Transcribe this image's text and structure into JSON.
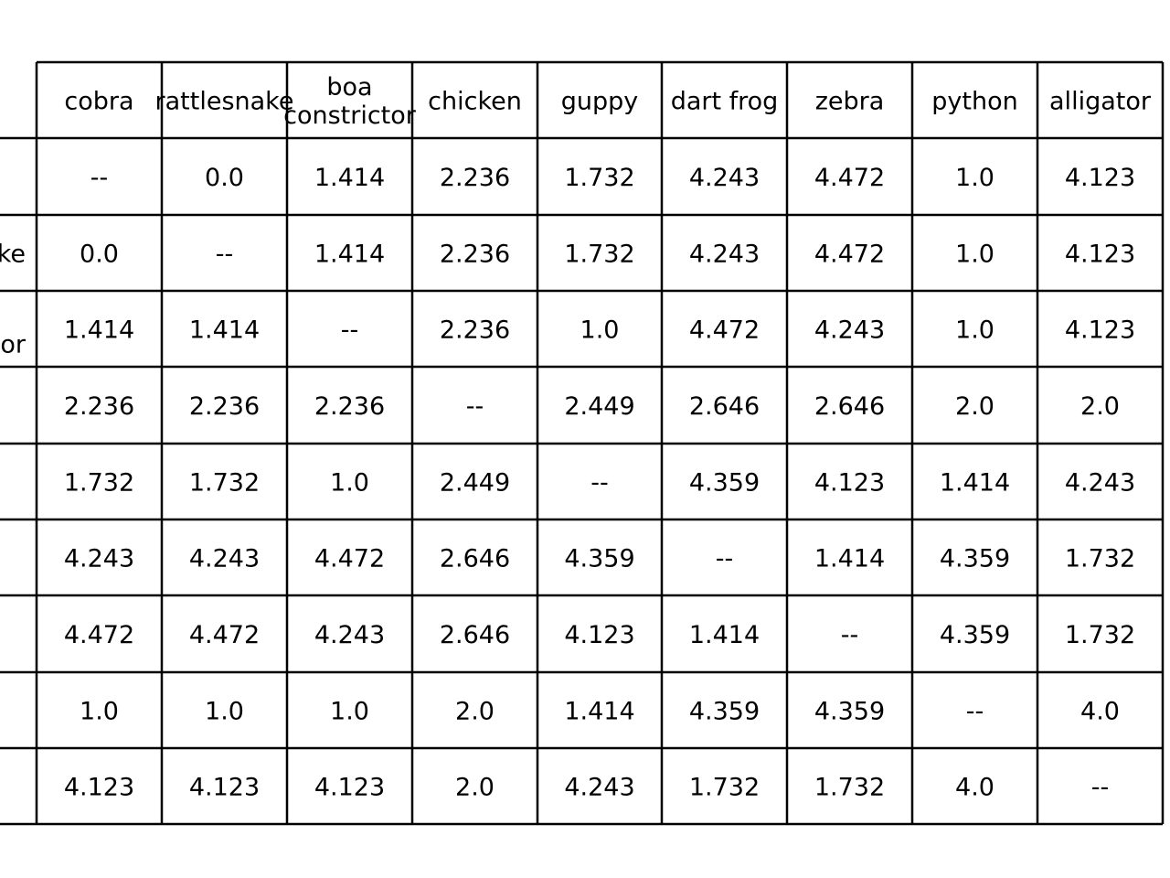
{
  "chart_data": {
    "type": "table",
    "columns": [
      "cobra",
      "rattlesnake",
      "boa constrictor",
      "chicken",
      "guppy",
      "dart frog",
      "zebra",
      "python",
      "alligator"
    ],
    "row_label_fragments": [
      "",
      "ke",
      "or",
      "",
      "",
      "",
      "",
      "",
      ""
    ],
    "cells": [
      [
        "--",
        "0.0",
        "1.414",
        "2.236",
        "1.732",
        "4.243",
        "4.472",
        "1.0",
        "4.123"
      ],
      [
        "0.0",
        "--",
        "1.414",
        "2.236",
        "1.732",
        "4.243",
        "4.472",
        "1.0",
        "4.123"
      ],
      [
        "1.414",
        "1.414",
        "--",
        "2.236",
        "1.0",
        "4.472",
        "4.243",
        "1.0",
        "4.123"
      ],
      [
        "2.236",
        "2.236",
        "2.236",
        "--",
        "2.449",
        "2.646",
        "2.646",
        "2.0",
        "2.0"
      ],
      [
        "1.732",
        "1.732",
        "1.0",
        "2.449",
        "--",
        "4.359",
        "4.123",
        "1.414",
        "4.243"
      ],
      [
        "4.243",
        "4.243",
        "4.472",
        "2.646",
        "4.359",
        "--",
        "1.414",
        "4.359",
        "1.732"
      ],
      [
        "4.472",
        "4.472",
        "4.243",
        "2.646",
        "4.123",
        "1.414",
        "--",
        "4.359",
        "1.732"
      ],
      [
        "1.0",
        "1.0",
        "1.0",
        "2.0",
        "1.414",
        "4.359",
        "4.359",
        "--",
        "4.0"
      ],
      [
        "4.123",
        "4.123",
        "4.123",
        "2.0",
        "4.243",
        "1.732",
        "1.732",
        "4.0",
        "--"
      ]
    ],
    "grid": true,
    "line_color": "#000000",
    "text_color": "#000000"
  }
}
